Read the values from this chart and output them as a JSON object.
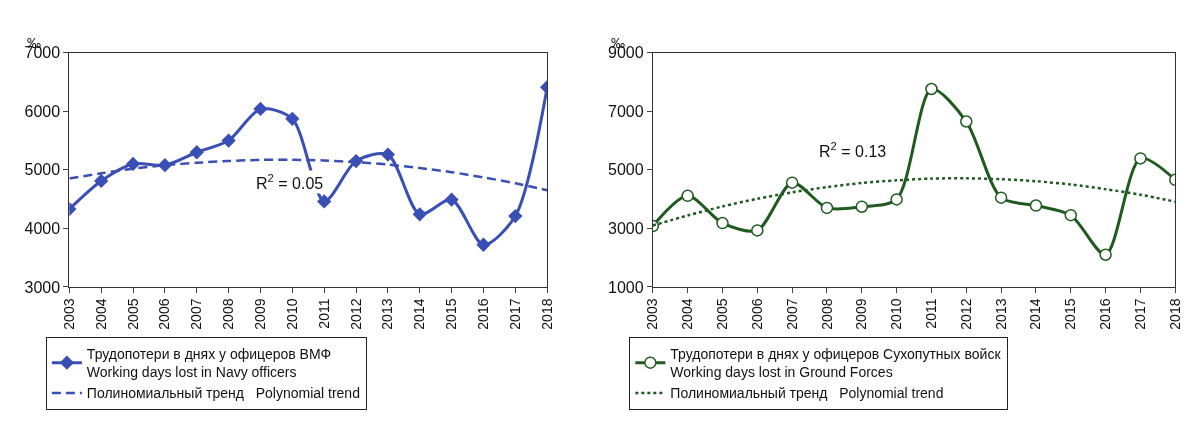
{
  "chart_data": [
    {
      "type": "line",
      "ylabel": "‰",
      "categories": [
        "2003",
        "2004",
        "2005",
        "2006",
        "2007",
        "2008",
        "2009",
        "2010",
        "2011",
        "2012",
        "2013",
        "2014",
        "2015",
        "2016",
        "2017",
        "2018"
      ],
      "series": [
        {
          "name": "Трудопотери в днях у офицеров ВМФ\nWorking days lost in Navy officers",
          "color": "#3a4fb5",
          "marker": "diamond",
          "line_style": "solid",
          "values": [
            4330,
            4810,
            5100,
            5080,
            5300,
            5500,
            6040,
            5870,
            4460,
            5150,
            5260,
            4240,
            4490,
            3720,
            4210,
            6410
          ]
        },
        {
          "name": "Полиномиальный тренд   Polynomial trend",
          "color": "#3a4fb5",
          "marker": "none",
          "line_style": "dashed",
          "values": [
            4850,
            4940,
            5020,
            5080,
            5120,
            5150,
            5170,
            5170,
            5160,
            5130,
            5090,
            5030,
            4960,
            4870,
            4770,
            4650
          ]
        }
      ],
      "ylim": [
        3000,
        7000
      ],
      "yticks": [
        3000,
        4000,
        5000,
        6000,
        7000
      ],
      "legend": "bottom",
      "annotations": [
        "R$^{2}$ = 0.05"
      ]
    },
    {
      "type": "line",
      "ylabel": "‰",
      "categories": [
        "2003",
        "2004",
        "2005",
        "2006",
        "2007",
        "2008",
        "2009",
        "2010",
        "2011",
        "2012",
        "2013",
        "2014",
        "2015",
        "2016",
        "2017",
        "2018"
      ],
      "series": [
        {
          "name": "Трудопотери в днях у офицеров Сухопутных войск\nWorking days lost in Ground Forces",
          "color": "#1f5a1f",
          "marker": "circle",
          "line_style": "solid",
          "values": [
            3080,
            4110,
            3180,
            2930,
            4560,
            3700,
            3740,
            3990,
            7760,
            6650,
            4050,
            3780,
            3450,
            2100,
            5390,
            4660
          ]
        },
        {
          "name": "Полиномиальный тренд   Polynomial trend",
          "color": "#1f5a1f",
          "marker": "none",
          "line_style": "dotted",
          "values": [
            3100,
            3440,
            3750,
            4010,
            4230,
            4410,
            4550,
            4640,
            4700,
            4710,
            4680,
            4610,
            4500,
            4340,
            4150,
            3910
          ]
        }
      ],
      "ylim": [
        1000,
        9000
      ],
      "yticks": [
        1000,
        3000,
        5000,
        7000,
        9000
      ],
      "legend": "bottom",
      "annotations": [
        "R$^{2}$ = 0.13"
      ]
    }
  ]
}
